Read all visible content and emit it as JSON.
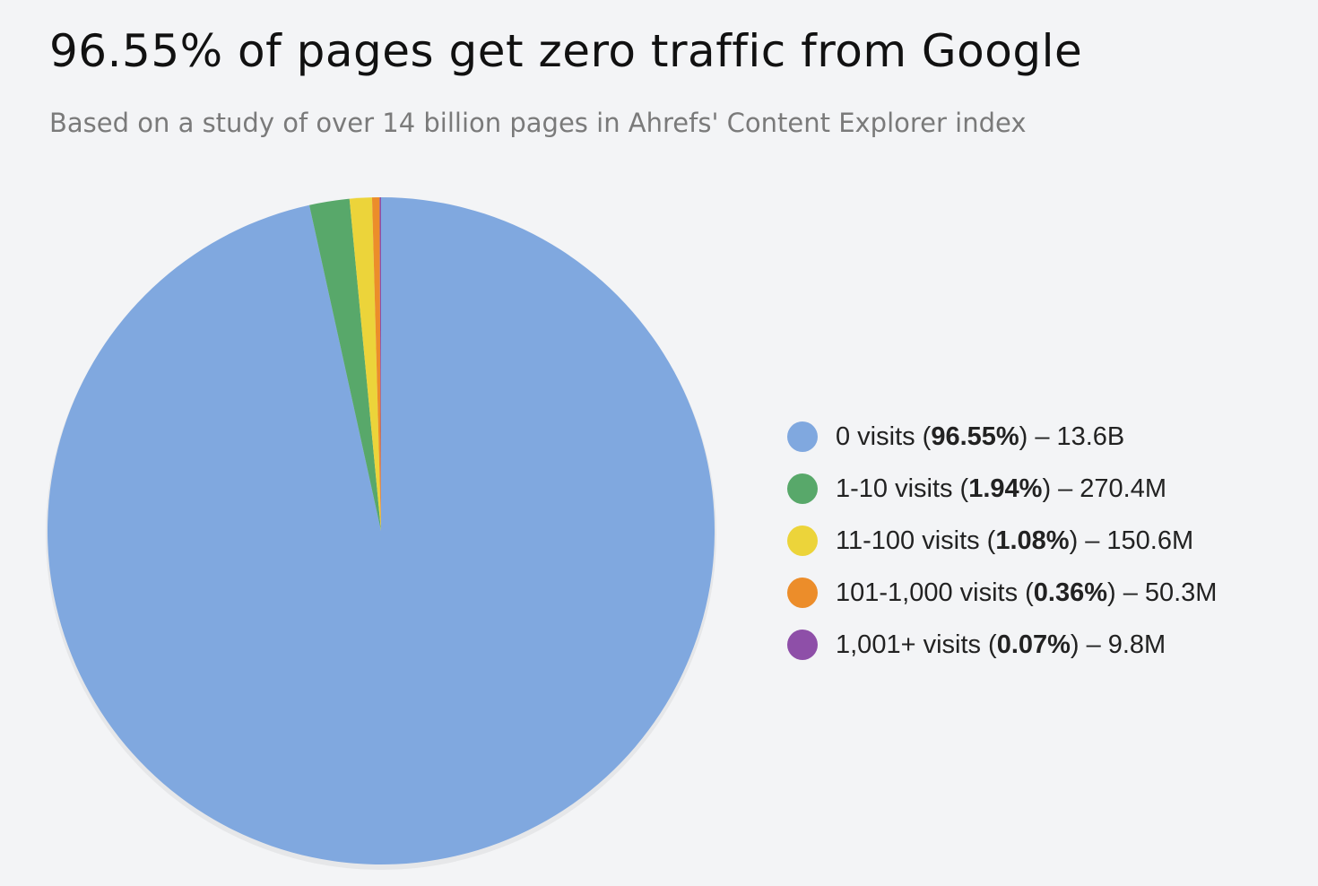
{
  "chart_data": {
    "type": "pie",
    "title": "96.55% of pages get zero traffic from Google",
    "subtitle": "Based on a study of over 14 billion pages in Ahrefs' Content Explorer index",
    "categories": [
      "0 visits",
      "1-10 visits",
      "11-100 visits",
      "101-1,000 visits",
      "1,001+ visits"
    ],
    "values": [
      96.55,
      1.94,
      1.08,
      0.36,
      0.07
    ],
    "value_labels": [
      "96.55%",
      "1.94%",
      "1.08%",
      "0.36%",
      "0.07%"
    ],
    "count_labels": [
      "13.6B",
      "270.4M",
      "150.6M",
      "50.3M",
      "9.8M"
    ],
    "legend_punctuation": {
      "open": "(",
      "close": ")",
      "dash": "–"
    },
    "colors": [
      "#80a8df",
      "#58a86a",
      "#ecd43a",
      "#ec8d2a",
      "#8e4fa8"
    ],
    "start_angle": 0,
    "direction": "clockwise"
  }
}
